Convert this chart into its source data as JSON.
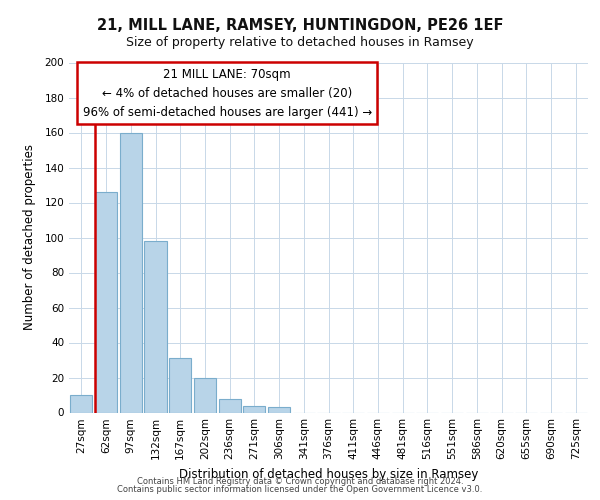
{
  "title_line1": "21, MILL LANE, RAMSEY, HUNTINGDON, PE26 1EF",
  "title_line2": "Size of property relative to detached houses in Ramsey",
  "xlabel": "Distribution of detached houses by size in Ramsey",
  "ylabel": "Number of detached properties",
  "bar_labels": [
    "27sqm",
    "62sqm",
    "97sqm",
    "132sqm",
    "167sqm",
    "202sqm",
    "236sqm",
    "271sqm",
    "306sqm",
    "341sqm",
    "376sqm",
    "411sqm",
    "446sqm",
    "481sqm",
    "516sqm",
    "551sqm",
    "586sqm",
    "620sqm",
    "655sqm",
    "690sqm",
    "725sqm"
  ],
  "bar_values": [
    10,
    126,
    160,
    98,
    31,
    20,
    8,
    4,
    3,
    0,
    0,
    0,
    0,
    0,
    0,
    0,
    0,
    0,
    0,
    0,
    0
  ],
  "bar_color": "#b8d4e8",
  "bar_edge_color": "#7aadcc",
  "vline_color": "#cc0000",
  "ylim": [
    0,
    200
  ],
  "yticks": [
    0,
    20,
    40,
    60,
    80,
    100,
    120,
    140,
    160,
    180,
    200
  ],
  "ann_title": "21 MILL LANE: 70sqm",
  "ann_line2": "← 4% of detached houses are smaller (20)",
  "ann_line3": "96% of semi-detached houses are larger (441) →",
  "footer_line1": "Contains HM Land Registry data © Crown copyright and database right 2024.",
  "footer_line2": "Contains public sector information licensed under the Open Government Licence v3.0.",
  "background_color": "#ffffff",
  "grid_color": "#c8d8e8",
  "title_fontsize": 10.5,
  "subtitle_fontsize": 9,
  "xlabel_fontsize": 8.5,
  "ylabel_fontsize": 8.5,
  "tick_fontsize": 7.5,
  "ann_fontsize": 8.5,
  "footer_fontsize": 6.0
}
